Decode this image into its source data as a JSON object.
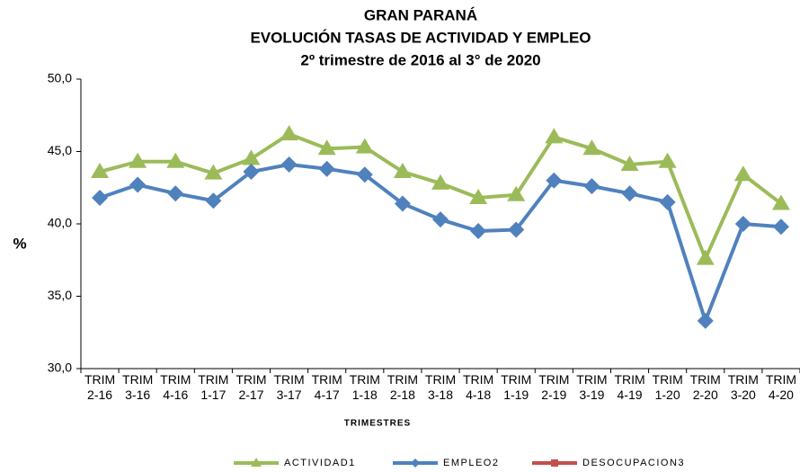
{
  "chart_data": {
    "type": "line",
    "title": [
      "GRAN PARANÁ",
      "EVOLUCIÓN TASAS DE ACTIVIDAD Y EMPLEO",
      "2º trimestre de 2016 al 3° de 2020"
    ],
    "x_label": "TRIMESTRES",
    "y_label": "%",
    "categories": [
      "TRIM 2-16",
      "TRIM 3-16",
      "TRIM 4-16",
      "TRIM 1-17",
      "TRIM 2-17",
      "TRIM 3-17",
      "TRIM 4-17",
      "TRIM 1-18",
      "TRIM 2-18",
      "TRIM 3-18",
      "TRIM 4-18",
      "TRIM 1-19",
      "TRIM 2-19",
      "TRIM 3-19",
      "TRIM 4-19",
      "TRIM 1-20",
      "TRIM 2-20",
      "TRIM 3-20",
      "TRIM 4-20"
    ],
    "series": [
      {
        "name": "ACTIVIDAD1",
        "color": "#9bbb59",
        "marker": "triangle",
        "values": [
          43.6,
          44.3,
          44.3,
          43.5,
          44.5,
          46.2,
          45.2,
          45.3,
          43.6,
          42.8,
          41.8,
          42.0,
          46.0,
          45.2,
          44.1,
          44.3,
          37.6,
          43.4,
          41.4
        ]
      },
      {
        "name": "EMPLEO2",
        "color": "#4f81bd",
        "marker": "diamond",
        "values": [
          41.8,
          42.7,
          42.1,
          41.6,
          43.6,
          44.1,
          43.8,
          43.4,
          41.4,
          40.3,
          39.5,
          39.6,
          43.0,
          42.6,
          42.1,
          41.5,
          33.3,
          40.0,
          39.8
        ]
      },
      {
        "name": "DESOCUPACION3",
        "color": "#c0504d",
        "marker": "square",
        "values": [
          null,
          null,
          null,
          null,
          null,
          null,
          null,
          null,
          null,
          null,
          null,
          null,
          null,
          null,
          null,
          null,
          null,
          null,
          null
        ]
      }
    ],
    "ylim": [
      30,
      50
    ],
    "yticks": [
      {
        "value": 30,
        "label": "30,0"
      },
      {
        "value": 35,
        "label": "35,0"
      },
      {
        "value": 40,
        "label": "40,0"
      },
      {
        "value": 45,
        "label": "45,0"
      },
      {
        "value": 50,
        "label": "50,0"
      }
    ],
    "legend": "bottom",
    "grid": false
  }
}
